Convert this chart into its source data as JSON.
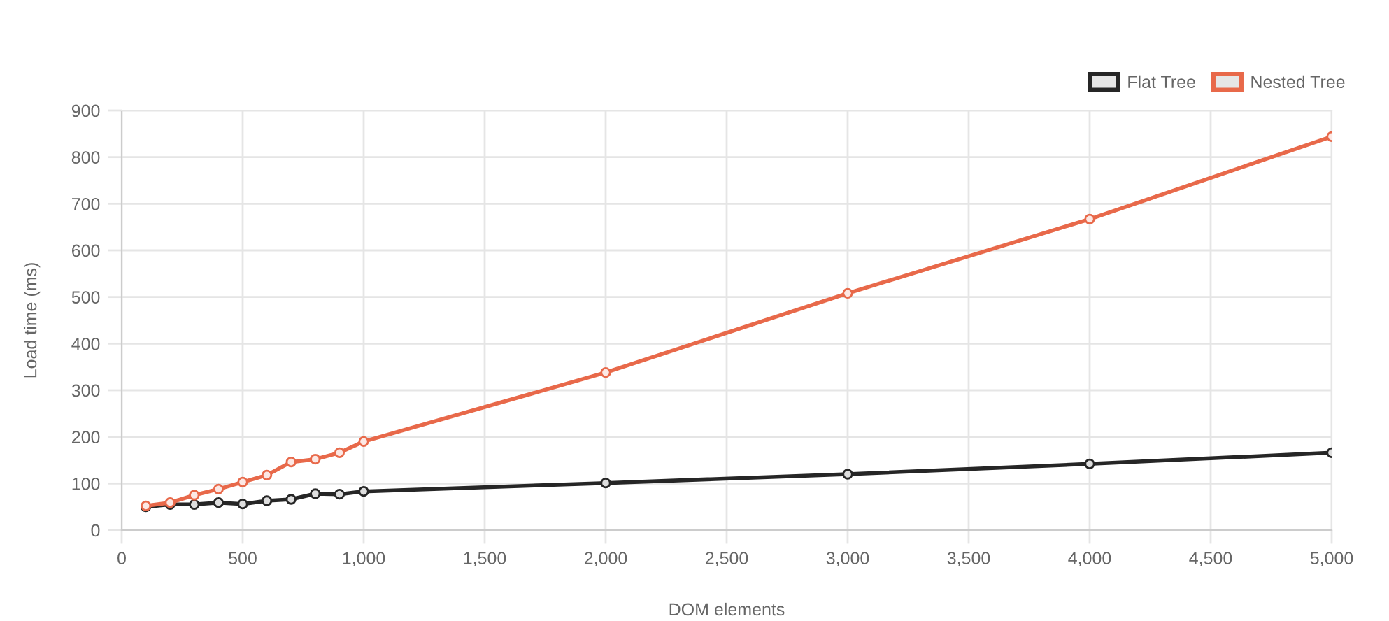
{
  "chart_data": {
    "type": "line",
    "xlabel": "DOM elements",
    "ylabel": "Load time (ms)",
    "x": [
      100,
      200,
      300,
      400,
      500,
      600,
      700,
      800,
      900,
      1000,
      2000,
      3000,
      4000,
      5000
    ],
    "series": [
      {
        "name": "Flat Tree",
        "color": "#262626",
        "values": [
          50,
          55,
          55,
          59,
          56,
          63,
          66,
          78,
          77,
          83,
          101,
          120,
          142,
          166
        ]
      },
      {
        "name": "Nested Tree",
        "color": "#e8694a",
        "values": [
          52,
          59,
          75,
          88,
          103,
          118,
          146,
          152,
          166,
          190,
          338,
          508,
          667,
          844
        ]
      }
    ],
    "xlim": [
      0,
      5000
    ],
    "xticks": [
      0,
      500,
      {
        "value": 1000,
        "label": "1,000"
      },
      {
        "value": 1500,
        "label": "1,500"
      },
      {
        "value": 2000,
        "label": "2,000"
      },
      {
        "value": 2500,
        "label": "2,500"
      },
      {
        "value": 3000,
        "label": "3,000"
      },
      {
        "value": 3500,
        "label": "3,500"
      },
      {
        "value": 4000,
        "label": "4,000"
      },
      {
        "value": 4500,
        "label": "4,500"
      },
      {
        "value": 5000,
        "label": "5,000"
      }
    ],
    "ylim": [
      0,
      900
    ],
    "yticks": [
      0,
      100,
      200,
      300,
      400,
      500,
      600,
      700,
      800,
      900
    ],
    "grid": true,
    "legend": "top right",
    "marker": "circle",
    "line_style": "solid"
  }
}
